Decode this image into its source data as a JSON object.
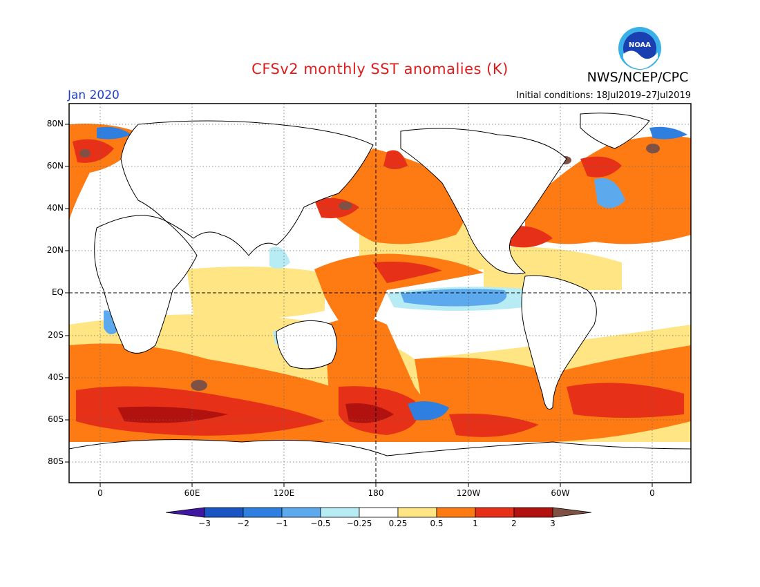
{
  "header": {
    "title": "CFSv2 monthly SST anomalies (K)",
    "agency": "NWS/NCEP/CPC",
    "month": "Jan 2020",
    "initial_conditions": "Initial conditions: 18Jul2019–27Jul2019",
    "logo_text": "NOAA"
  },
  "axes": {
    "lat_labels": [
      "80N",
      "60N",
      "40N",
      "20N",
      "EQ",
      "20S",
      "40S",
      "60S",
      "80S"
    ],
    "lon_labels": [
      "0",
      "60E",
      "120E",
      "180",
      "120W",
      "60W",
      "0"
    ],
    "grid": true
  },
  "colorbar": {
    "labels": [
      "−3",
      "−2",
      "−1",
      "−0.5",
      "−0.25",
      "0.25",
      "0.5",
      "1",
      "2",
      "3"
    ],
    "colors": [
      "#3f17a3",
      "#1b55c4",
      "#2f7fe0",
      "#5da9ee",
      "#b7ecf5",
      "#ffffff",
      "#ffe583",
      "#fe7b14",
      "#e63017",
      "#b2120f",
      "#7f5144"
    ]
  },
  "palette": {
    "land": "#ffffff",
    "coast": "#000000",
    "title": "#e21a1a",
    "month": "#1f3fd0"
  }
}
